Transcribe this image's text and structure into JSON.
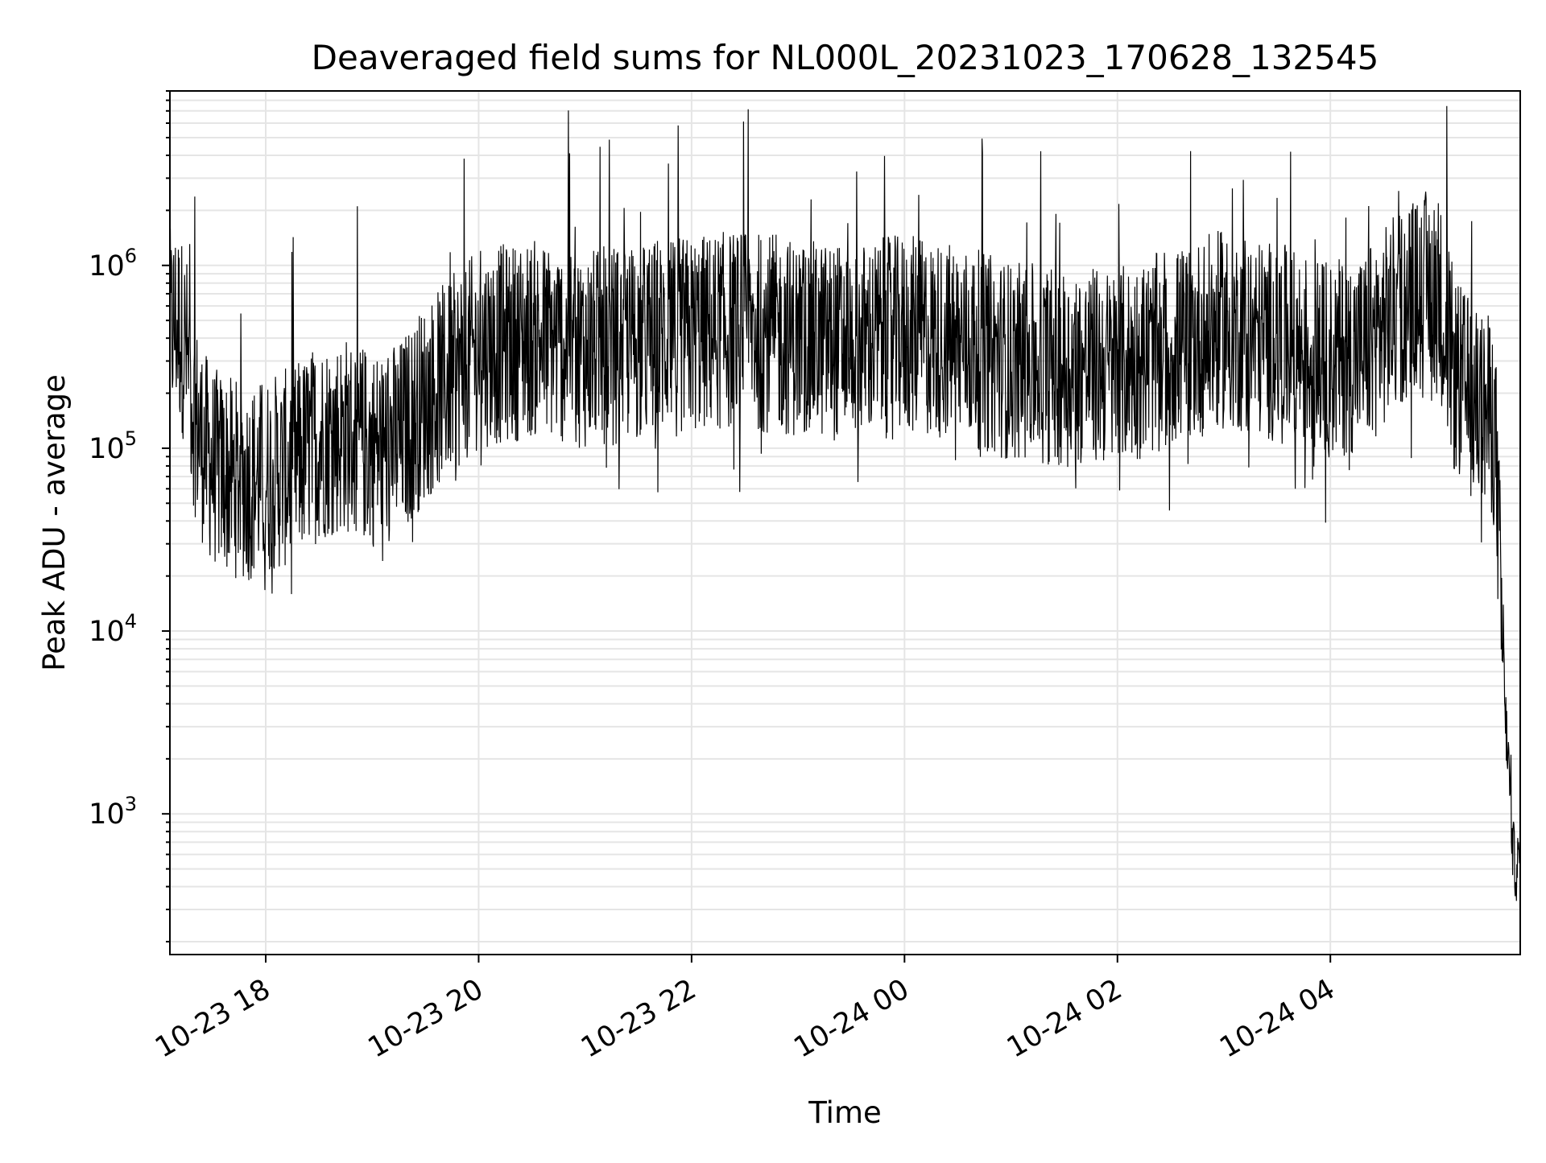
{
  "chart_data": {
    "type": "line",
    "title": "Deaveraged field sums for NL000L_20231023_170628_132545",
    "xlabel": "Time",
    "ylabel": "Peak ADU - average",
    "yscale": "log",
    "xlim": [
      "2023-10-23 17:06",
      "2023-10-24 05:47"
    ],
    "ylim": [
      170,
      9000000
    ],
    "grid": "on (major and minor)",
    "x_ticks": [
      {
        "value": "2023-10-23 18:00",
        "label": "10-23 18"
      },
      {
        "value": "2023-10-23 20:00",
        "label": "10-23 20"
      },
      {
        "value": "2023-10-23 22:00",
        "label": "10-23 22"
      },
      {
        "value": "2023-10-24 00:00",
        "label": "10-24 00"
      },
      {
        "value": "2023-10-24 02:00",
        "label": "10-24 02"
      },
      {
        "value": "2023-10-24 04:00",
        "label": "10-24 04"
      }
    ],
    "y_ticks": [
      {
        "value": 1000,
        "base": "10",
        "exp": "3"
      },
      {
        "value": 10000,
        "base": "10",
        "exp": "4"
      },
      {
        "value": 100000,
        "base": "10",
        "exp": "5"
      },
      {
        "value": 1000000,
        "base": "10",
        "exp": "6"
      }
    ],
    "line_color": "#000000",
    "series": [
      {
        "x": [
          "2023-10-23 17:06",
          "2023-10-23 17:10",
          "2023-10-23 17:15",
          "2023-10-23 17:20",
          "2023-10-23 17:25",
          "2023-10-23 17:30",
          "2023-10-23 17:40",
          "2023-10-23 17:50",
          "2023-10-23 18:00",
          "2023-10-23 18:15",
          "2023-10-23 18:30",
          "2023-10-23 18:45",
          "2023-10-23 19:00",
          "2023-10-23 19:15",
          "2023-10-23 19:30",
          "2023-10-23 19:45",
          "2023-10-23 20:00",
          "2023-10-23 20:30",
          "2023-10-23 21:00",
          "2023-10-23 21:30",
          "2023-10-23 22:00",
          "2023-10-23 22:30",
          "2023-10-23 23:00",
          "2023-10-23 23:30",
          "2023-10-24 00:00",
          "2023-10-24 00:30",
          "2023-10-24 01:00",
          "2023-10-24 01:30",
          "2023-10-24 02:00",
          "2023-10-24 02:30",
          "2023-10-24 03:00",
          "2023-10-24 03:30",
          "2023-10-24 04:00",
          "2023-10-24 04:20",
          "2023-10-24 04:40",
          "2023-10-24 05:00",
          "2023-10-24 05:10",
          "2023-10-24 05:20",
          "2023-10-24 05:30",
          "2023-10-24 05:33",
          "2023-10-24 05:35",
          "2023-10-24 05:37",
          "2023-10-24 05:39",
          "2023-10-24 05:41",
          "2023-10-24 05:43",
          "2023-10-24 05:45",
          "2023-10-24 05:47"
        ],
        "y": [
          450000,
          500000,
          350000,
          150000,
          100000,
          80000,
          70000,
          65000,
          70000,
          80000,
          110000,
          120000,
          100000,
          110000,
          180000,
          250000,
          350000,
          400000,
          350000,
          380000,
          420000,
          450000,
          400000,
          380000,
          420000,
          380000,
          300000,
          280000,
          280000,
          350000,
          450000,
          380000,
          300000,
          350000,
          600000,
          800000,
          250000,
          180000,
          150000,
          120000,
          30000,
          8000,
          3000,
          1500,
          600,
          500,
          550
        ]
      }
    ]
  }
}
